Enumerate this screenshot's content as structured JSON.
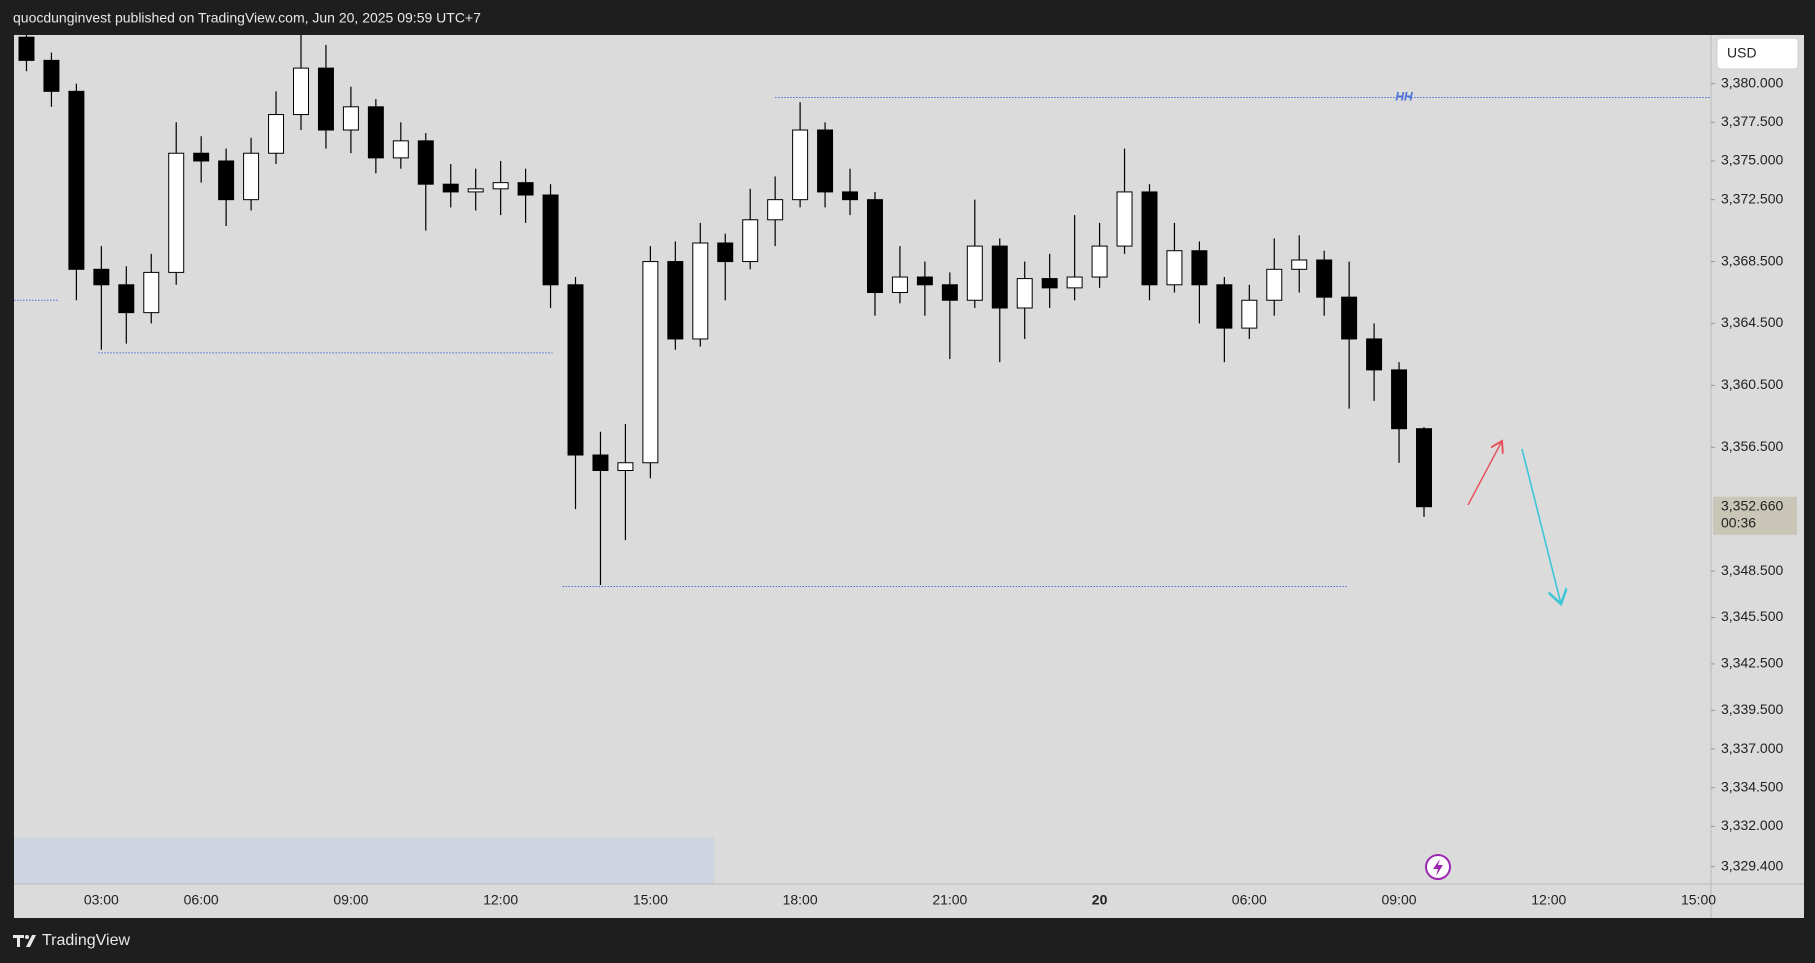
{
  "header": {
    "text": "quocdunginvest published on TradingView.com, Jun 20, 2025 09:59 UTC+7"
  },
  "footer": {
    "brand": "TradingView"
  },
  "chart_data": {
    "type": "candlestick",
    "categories": [
      null,
      null,
      null,
      "03:00",
      null,
      null,
      null,
      "06:00",
      null,
      null,
      null,
      null,
      null,
      "09:00",
      null,
      null,
      null,
      null,
      null,
      "12:00",
      null,
      null,
      null,
      null,
      null,
      "15:00",
      null,
      null,
      null,
      null,
      null,
      "18:00",
      null,
      null,
      null,
      null,
      null,
      "21:00",
      null,
      null,
      null,
      null,
      null,
      "20",
      null,
      null,
      null,
      null,
      null,
      "06:00",
      null,
      null,
      null,
      null,
      null,
      "09:00",
      null,
      null,
      null,
      null,
      null,
      "12:00",
      null,
      null,
      null,
      null,
      null,
      "15:00"
    ],
    "open": [
      3383.0,
      3381.5,
      3379.5,
      3368.0,
      3367.0,
      3365.2,
      3367.8,
      3375.5,
      3375.0,
      3372.5,
      3375.5,
      3378.0,
      3381.0,
      3377.0,
      3378.5,
      3375.2,
      3376.3,
      3373.5,
      3373.0,
      3373.2,
      3373.6,
      3372.8,
      3367.0,
      3356.0,
      3355.0,
      3355.5,
      3368.5,
      3363.5,
      3369.7,
      3368.5,
      3371.2,
      3372.5,
      3377.0,
      3373.0,
      3372.5,
      3366.5,
      3367.5,
      3367.0,
      3366.0,
      3369.5,
      3365.5,
      3367.4,
      3366.8,
      3367.5,
      3369.5,
      3373.0,
      3367.0,
      3369.2,
      3367.0,
      3364.2,
      3366.0,
      3368.0,
      3368.6,
      3366.2,
      3363.5,
      3361.5,
      3357.7,
      null,
      null,
      null,
      null,
      null,
      null,
      null,
      null,
      null,
      null,
      null
    ],
    "high": [
      3384.0,
      3382.0,
      3380.0,
      3369.5,
      3368.2,
      3369.0,
      3377.5,
      3376.6,
      3375.8,
      3376.5,
      3379.5,
      3383.5,
      3382.5,
      3379.8,
      3379.0,
      3377.5,
      3376.8,
      3374.8,
      3374.5,
      3375.0,
      3374.5,
      3373.5,
      3367.5,
      3357.5,
      3358.0,
      3369.5,
      3369.8,
      3371.0,
      3370.3,
      3373.2,
      3374.0,
      3378.8,
      3377.5,
      3374.5,
      3373.0,
      3369.5,
      3368.5,
      3367.8,
      3372.5,
      3370.0,
      3368.5,
      3369.0,
      3371.5,
      3371.0,
      3375.8,
      3373.5,
      3371.0,
      3369.8,
      3367.5,
      3367.0,
      3370.0,
      3370.2,
      3369.2,
      3368.5,
      3364.5,
      3362.0,
      3357.8,
      null,
      null,
      null,
      null,
      null,
      null,
      null,
      null,
      null,
      null,
      null
    ],
    "low": [
      3380.8,
      3378.5,
      3366.0,
      3362.8,
      3363.2,
      3364.5,
      3367.0,
      3373.6,
      3370.8,
      3371.8,
      3374.8,
      3377.0,
      3375.8,
      3375.5,
      3374.2,
      3374.5,
      3370.5,
      3372.0,
      3371.8,
      3371.5,
      3371.0,
      3365.5,
      3352.5,
      3347.6,
      3350.5,
      3354.5,
      3362.8,
      3363.0,
      3366.0,
      3368.0,
      3369.5,
      3372.0,
      3372.0,
      3371.5,
      3365.0,
      3365.8,
      3365.0,
      3362.2,
      3365.5,
      3362.0,
      3363.5,
      3365.5,
      3366.0,
      3366.8,
      3369.0,
      3366.0,
      3366.5,
      3364.5,
      3362.0,
      3363.5,
      3365.0,
      3366.5,
      3365.0,
      3359.0,
      3359.5,
      3355.5,
      3352.0,
      null,
      null,
      null,
      null,
      null,
      null,
      null,
      null,
      null,
      null,
      null
    ],
    "close": [
      3381.5,
      3379.5,
      3368.0,
      3367.0,
      3365.2,
      3367.8,
      3375.5,
      3375.0,
      3372.5,
      3375.5,
      3378.0,
      3381.0,
      3377.0,
      3378.5,
      3375.2,
      3376.3,
      3373.5,
      3373.0,
      3373.2,
      3373.6,
      3372.8,
      3367.0,
      3356.0,
      3355.0,
      3355.5,
      3368.5,
      3363.5,
      3369.7,
      3368.5,
      3371.2,
      3372.5,
      3377.0,
      3373.0,
      3372.5,
      3366.5,
      3367.5,
      3367.0,
      3366.0,
      3369.5,
      3365.5,
      3367.4,
      3366.8,
      3367.5,
      3369.5,
      3373.0,
      3367.0,
      3369.2,
      3367.0,
      3364.2,
      3366.0,
      3368.0,
      3368.6,
      3366.2,
      3363.5,
      3361.5,
      3357.7,
      3352.66,
      null,
      null,
      null,
      null,
      null,
      null,
      null,
      null,
      null,
      null,
      null
    ],
    "up_color": "#ffffff",
    "down_color": "#000000",
    "edge_color": "#000000",
    "ylim": [
      3328.28,
      3383.14
    ],
    "yticks": [
      {
        "value": 3380,
        "label": "3,380.000"
      },
      {
        "value": 3377.5,
        "label": "3,377.500"
      },
      {
        "value": 3375,
        "label": "3,375.000"
      },
      {
        "value": 3372.5,
        "label": "3,372.500"
      },
      {
        "value": 3368.5,
        "label": "3,368.500"
      },
      {
        "value": 3364.5,
        "label": "3,364.500"
      },
      {
        "value": 3360.5,
        "label": "3,360.500"
      },
      {
        "value": 3356.5,
        "label": "3,356.500"
      },
      {
        "value": 3348.5,
        "label": "3,348.500"
      },
      {
        "value": 3345.5,
        "label": "3,345.500"
      },
      {
        "value": 3342.5,
        "label": "3,342.500"
      },
      {
        "value": 3339.5,
        "label": "3,339.500"
      },
      {
        "value": 3337,
        "label": "3,337.000"
      },
      {
        "value": 3334.5,
        "label": "3,334.500"
      },
      {
        "value": 3332,
        "label": "3,332.000"
      },
      {
        "value": 3329.4,
        "label": "3,329.400"
      }
    ],
    "currency": "USD",
    "last_price": {
      "value": 3352.66,
      "label": "3,352.660"
    },
    "countdown": "00:36",
    "levels": [
      {
        "value": 3379.1,
        "label": "HH"
      },
      {
        "value": 3362.6
      },
      {
        "value": 3347.5
      },
      {
        "value": 3366.0
      }
    ],
    "level_color": "#4a6fd8"
  }
}
